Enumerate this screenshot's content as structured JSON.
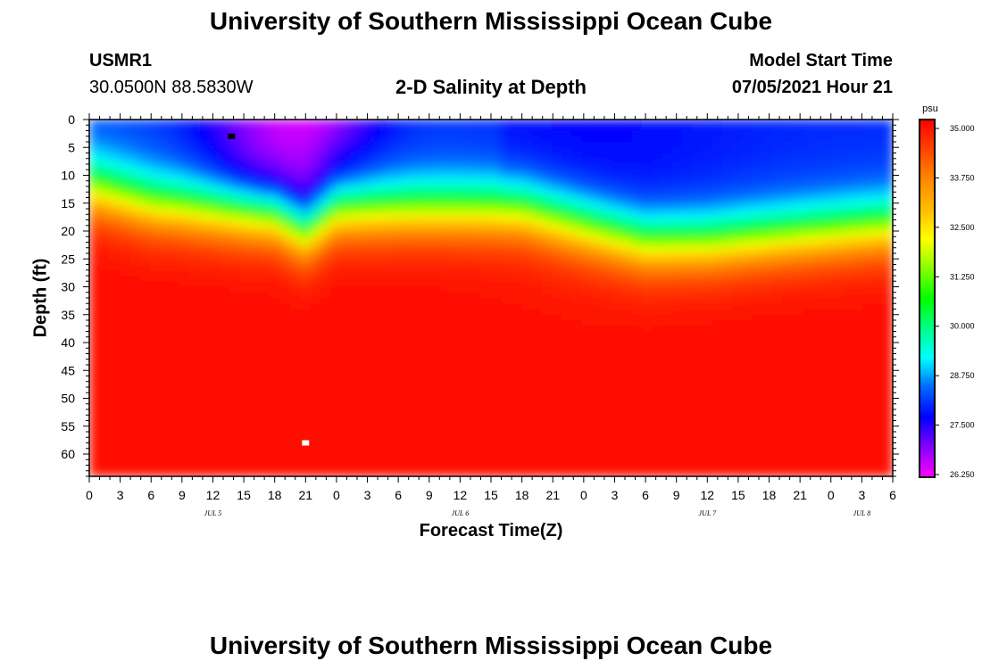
{
  "header": {
    "title": "University of Southern Mississippi Ocean Cube",
    "station_id": "USMR1",
    "station_coords": "30.0500N  88.5830W",
    "plot_title": "2-D Salinity at Depth",
    "start_label": "Model Start Time",
    "start_value": "07/05/2021 Hour 21"
  },
  "footer": {
    "title": "University of Southern Mississippi Ocean Cube"
  },
  "chart_data": {
    "type": "heatmap",
    "title": "2-D Salinity at Depth",
    "xlabel": "Forecast Time(Z)",
    "ylabel": "Depth (ft)",
    "x_unit": "hours since Jul 5 00Z",
    "xlim": [
      0,
      78
    ],
    "ylim": [
      0,
      64
    ],
    "x_ticks": [
      0,
      3,
      6,
      9,
      12,
      15,
      18,
      21,
      24,
      27,
      30,
      33,
      36,
      39,
      42,
      45,
      48,
      51,
      54,
      57,
      60,
      63,
      66,
      69,
      72,
      75,
      78
    ],
    "x_tick_labels": [
      "0",
      "3",
      "6",
      "9",
      "12",
      "15",
      "18",
      "21",
      "0",
      "3",
      "6",
      "9",
      "12",
      "15",
      "18",
      "21",
      "0",
      "3",
      "6",
      "9",
      "12",
      "15",
      "18",
      "21",
      "0",
      "3",
      "6"
    ],
    "y_ticks": [
      0,
      5,
      10,
      15,
      20,
      25,
      30,
      35,
      40,
      45,
      50,
      55,
      60
    ],
    "y_tick_labels": [
      "0",
      "5",
      "10",
      "15",
      "20",
      "25",
      "30",
      "35",
      "40",
      "45",
      "50",
      "55",
      "60"
    ],
    "date_labels": [
      {
        "hour": 12,
        "label": "JUL 5"
      },
      {
        "hour": 36,
        "label": "JUL 6"
      },
      {
        "hour": 60,
        "label": "JUL 7"
      },
      {
        "hour": 75,
        "label": "JUL 8"
      }
    ],
    "colorbar": {
      "unit": "psu",
      "min": 26.25,
      "max": 35.0,
      "ticks": [
        "35.000",
        "33.750",
        "32.500",
        "31.250",
        "30.000",
        "28.750",
        "27.500",
        "26.250"
      ],
      "colors": [
        "#ff00ff",
        "#8800ff",
        "#0000ff",
        "#0066ff",
        "#00ffff",
        "#00ff88",
        "#00ff00",
        "#88ff00",
        "#ffff00",
        "#ffbb00",
        "#ff8800",
        "#ff4400",
        "#ff0000"
      ]
    },
    "surface_layer": {
      "description": "low-salinity layer (about 26.3-28.5 psu) in top ~10 ft",
      "minimum_psu": 26.3,
      "minimum_at": {
        "hour": 25,
        "depth_ft": 3
      }
    },
    "halocline_depth_ft": [
      {
        "hour": 0,
        "depth": 12
      },
      {
        "hour": 6,
        "depth": 15
      },
      {
        "hour": 12,
        "depth": 16
      },
      {
        "hour": 18,
        "depth": 17
      },
      {
        "hour": 21,
        "depth": 20
      },
      {
        "hour": 24,
        "depth": 16
      },
      {
        "hour": 30,
        "depth": 16
      },
      {
        "hour": 42,
        "depth": 16
      },
      {
        "hour": 48,
        "depth": 19
      },
      {
        "hour": 54,
        "depth": 22
      },
      {
        "hour": 60,
        "depth": 22
      },
      {
        "hour": 66,
        "depth": 21
      },
      {
        "hour": 72,
        "depth": 20
      },
      {
        "hour": 78,
        "depth": 19
      }
    ],
    "markers": [
      {
        "hour": 13.8,
        "depth_ft": 3,
        "color": "#000000"
      },
      {
        "hour": 21,
        "depth_ft": 58,
        "color": "#ffffff"
      }
    ]
  }
}
